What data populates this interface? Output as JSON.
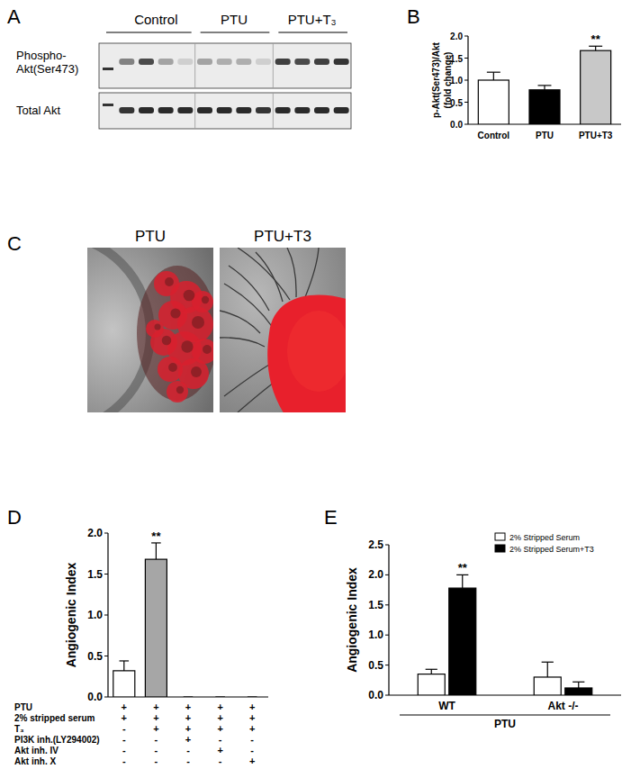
{
  "figure": {
    "panel_labels": [
      "A",
      "B",
      "C",
      "D",
      "E"
    ],
    "blot": {
      "groups": [
        {
          "label": "Control"
        },
        {
          "label": "PTU"
        },
        {
          "label": "PTU+T₃"
        }
      ],
      "rows": [
        {
          "label_lines": [
            "Phospho-",
            "Akt(Ser473)"
          ],
          "intensities": [
            0.5,
            0.75,
            0.35,
            0.15,
            0.35,
            0.3,
            0.3,
            0.15,
            0.8,
            0.75,
            0.8,
            0.85
          ]
        },
        {
          "label_lines": [
            "Total Akt"
          ],
          "intensities": [
            0.85,
            0.9,
            0.9,
            0.9,
            0.9,
            0.9,
            0.9,
            0.85,
            0.9,
            0.9,
            0.9,
            0.9
          ]
        }
      ]
    },
    "micrographs": [
      {
        "label": "PTU"
      },
      {
        "label": "PTU+T3"
      }
    ]
  },
  "chart_data": [
    {
      "type": "bar",
      "categories": [
        "Control",
        "PTU",
        "PTU+T3"
      ],
      "values": [
        1.0,
        0.78,
        1.67
      ],
      "errors": [
        0.18,
        0.1,
        0.1
      ],
      "significance": [
        null,
        null,
        "**"
      ],
      "colors": [
        "#ffffff",
        "#000000",
        "#c8c8c8"
      ],
      "ylim": [
        0,
        2
      ],
      "yticks": [
        {
          "value": 0,
          "label": "0.0"
        },
        0.5,
        {
          "value": 1,
          "label": "1.0"
        },
        1.5,
        {
          "value": 2,
          "label": "2.0"
        }
      ],
      "y_label": [
        "p-Akt(Ser473)/Akt",
        "(fold change)"
      ]
    },
    {
      "type": "bar",
      "categories": [
        null,
        null,
        null,
        null,
        null
      ],
      "values": [
        0.32,
        1.68,
        0,
        0,
        0
      ],
      "errors": [
        0.12,
        0.2,
        0,
        0,
        0
      ],
      "significance": [
        null,
        "**",
        null,
        null,
        null
      ],
      "colors": [
        "#ffffff",
        "#a6a6a6",
        "#a6a6a6",
        "#a6a6a6",
        "#a6a6a6"
      ],
      "ylim": [
        0,
        2
      ],
      "yticks": [
        {
          "value": 0,
          "label": "0.0"
        },
        0.5,
        {
          "value": 1,
          "label": "1.0"
        },
        1.5,
        {
          "value": 2,
          "label": "2.0"
        }
      ],
      "y_label": [
        "Angiogenic Index"
      ],
      "conditions": [
        {
          "label": "PTU",
          "signs": [
            "+",
            "+",
            "+",
            "+",
            "+"
          ]
        },
        {
          "label": "2% stripped serum",
          "signs": [
            "+",
            "+",
            "+",
            "+",
            "+"
          ]
        },
        {
          "label": "T₃",
          "signs": [
            "-",
            "+",
            "+",
            "+",
            "+"
          ]
        },
        {
          "label": "PI3K inh.(LY294002)",
          "signs": [
            "-",
            "-",
            "+",
            "-",
            "-"
          ]
        },
        {
          "label": "Akt inh. IV",
          "signs": [
            "-",
            "-",
            "-",
            "+",
            "-"
          ]
        },
        {
          "label": "Akt inh. X",
          "signs": [
            "-",
            "-",
            "-",
            "-",
            "+"
          ]
        }
      ]
    },
    {
      "type": "bar",
      "categories": [
        "WT",
        "Akt -/-"
      ],
      "x_label": "PTU",
      "legend": "top-right",
      "series": [
        {
          "name": "2% Stripped Serum",
          "color": "#ffffff",
          "values": [
            0.35,
            0.3
          ],
          "errors": [
            0.08,
            0.25
          ]
        },
        {
          "name": "2% Stripped Serum+T3",
          "color": "#000000",
          "values": [
            1.78,
            0.12
          ],
          "errors": [
            0.22,
            0.1
          ],
          "significance": [
            "**",
            null
          ]
        }
      ],
      "ylim": [
        0,
        2.5
      ],
      "yticks": [
        {
          "value": 0,
          "label": "0.0"
        },
        0.5,
        {
          "value": 1,
          "label": "1.0"
        },
        1.5,
        {
          "value": 2,
          "label": "2.0"
        },
        2.5
      ],
      "y_label": [
        "Angiogenic Index"
      ]
    }
  ]
}
